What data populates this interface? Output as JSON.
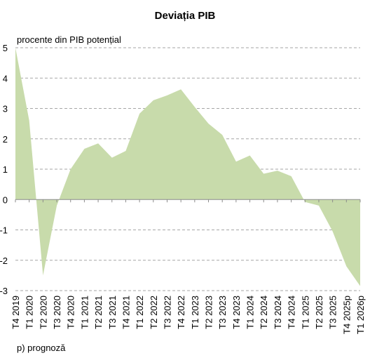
{
  "chart_data": {
    "type": "area",
    "title": "Deviația PIB",
    "ylabel": "procente din PIB potențial",
    "xlabel": "",
    "footnote": "p) prognoză",
    "ylim": [
      -3,
      5
    ],
    "yticks": [
      5,
      4,
      3,
      2,
      1,
      0,
      -1,
      -2,
      -3
    ],
    "ytick_labels": [
      "5",
      "4",
      "3",
      "2",
      "1",
      "0",
      "-1",
      "-2",
      "-3"
    ],
    "grid": true,
    "legend": "none",
    "x_tick_labels": [
      "T4 2019",
      "T1 2020",
      "T2 2020",
      "T3 2020",
      "T4 2020",
      "T1 2021",
      "T2 2021",
      "T3 2021",
      "T4 2021",
      "T1 2022",
      "T2 2022",
      "T3 2022",
      "T4 2022",
      "T1 2023",
      "T2 2023",
      "T3 2023",
      "T4 2023",
      "T1 2024",
      "T2 2024",
      "T3 2024",
      "T4 2024",
      "T1 2025",
      "T2 2025",
      "T3 2025",
      "T4 2025p",
      "T1 2026p"
    ],
    "series": [
      {
        "color": "#c8dbab",
        "values": [
          5.0,
          2.6,
          -2.5,
          -0.2,
          1.0,
          1.67,
          1.85,
          1.38,
          1.6,
          2.83,
          3.27,
          3.43,
          3.63,
          3.05,
          2.5,
          2.13,
          1.25,
          1.45,
          0.85,
          0.95,
          0.77,
          -0.08,
          -0.2,
          -1.05,
          -2.2,
          -2.85
        ]
      }
    ]
  }
}
